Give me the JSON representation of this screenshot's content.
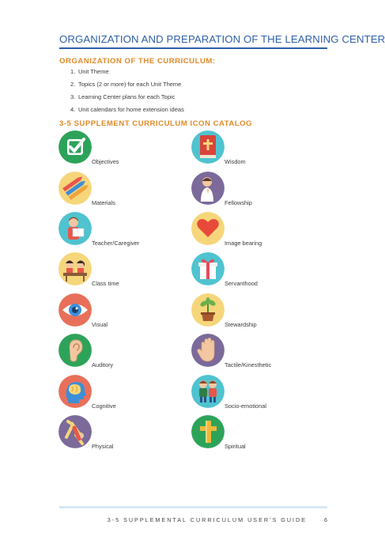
{
  "page": {
    "title": "ORGANIZATION AND PREPARATION OF THE LEARNING CENTERS:",
    "section1_heading": "ORGANIZATION OF THE CURRICULUM:",
    "steps": [
      {
        "num": "1.",
        "text": "Unit Theme"
      },
      {
        "num": "2.",
        "text": "Topics (2 or more) for each Unit Theme"
      },
      {
        "num": "3.",
        "text": "Learning Center plans for each Topic"
      },
      {
        "num": "4.",
        "text": "Unit calendars for home extension ideas"
      }
    ],
    "section2_heading": "3-5 SUPPLEMENT CURRICULUM ICON CATALOG",
    "icons": [
      {
        "label": "Objectives",
        "icon": "checkmark-icon",
        "color": "#2da35a"
      },
      {
        "label": "Wisdom",
        "icon": "book-icon",
        "color": "#4fc3cf"
      },
      {
        "label": "Materials",
        "icon": "crayons-icon",
        "color": "#f6d67a"
      },
      {
        "label": "Fellowship",
        "icon": "praying-figure-icon",
        "color": "#7b6a9a"
      },
      {
        "label": "Teacher/Caregiver",
        "icon": "teacher-icon",
        "color": "#4fc3cf"
      },
      {
        "label": "Image bearing",
        "icon": "heart-icon",
        "color": "#f6d67a"
      },
      {
        "label": "Class time",
        "icon": "children-at-desk-icon",
        "color": "#f6d67a"
      },
      {
        "label": "Servanthood",
        "icon": "gift-icon",
        "color": "#4fc3cf"
      },
      {
        "label": "Visual",
        "icon": "eye-icon",
        "color": "#e8705a"
      },
      {
        "label": "Stewardship",
        "icon": "plant-icon",
        "color": "#f6d67a"
      },
      {
        "label": "Auditory",
        "icon": "ear-icon",
        "color": "#2da35a"
      },
      {
        "label": "Tactile/Kinesthetic",
        "icon": "hand-icon",
        "color": "#7b6a9a"
      },
      {
        "label": "Cognitive",
        "icon": "brain-head-icon",
        "color": "#e8705a"
      },
      {
        "label": "Socio-emotional",
        "icon": "two-kids-icon",
        "color": "#4fc3cf"
      },
      {
        "label": "Physical",
        "icon": "stretching-figure-icon",
        "color": "#7b6a9a"
      },
      {
        "label": "Spiritual",
        "icon": "cross-icon",
        "color": "#2da35a"
      }
    ],
    "footer": "3-5 SUPPLEMENTAL CURRICULUM USER'S GUIDE",
    "page_number": "6"
  }
}
